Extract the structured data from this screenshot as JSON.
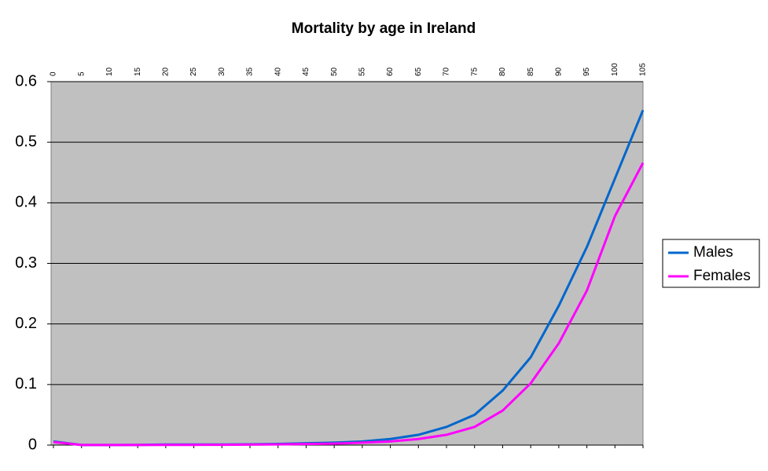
{
  "chart_data": {
    "type": "line",
    "title": "Mortality by age in Ireland",
    "x": [
      0,
      5,
      10,
      15,
      20,
      25,
      30,
      35,
      40,
      45,
      50,
      55,
      60,
      65,
      70,
      75,
      80,
      85,
      90,
      95,
      100,
      105
    ],
    "series": [
      {
        "name": "Males",
        "color": "#0066cc",
        "values": [
          0.006,
          0.0002,
          0.0002,
          0.0004,
          0.001,
          0.001,
          0.001,
          0.0013,
          0.002,
          0.003,
          0.004,
          0.006,
          0.01,
          0.017,
          0.03,
          0.05,
          0.09,
          0.145,
          0.23,
          0.327,
          0.44,
          0.553
        ]
      },
      {
        "name": "Females",
        "color": "#ff00ff",
        "values": [
          0.005,
          0.0002,
          0.0001,
          0.0002,
          0.0004,
          0.0004,
          0.0005,
          0.0008,
          0.0012,
          0.0018,
          0.0025,
          0.004,
          0.006,
          0.01,
          0.017,
          0.03,
          0.057,
          0.102,
          0.168,
          0.255,
          0.378,
          0.466
        ]
      }
    ],
    "xlim": [
      0,
      105
    ],
    "xticks": [
      0,
      5,
      10,
      15,
      20,
      25,
      30,
      35,
      40,
      45,
      50,
      55,
      60,
      65,
      70,
      75,
      80,
      85,
      90,
      95,
      100,
      105
    ],
    "ylim": [
      0,
      0.6
    ],
    "yticks": [
      0,
      0.1,
      0.2,
      0.3,
      0.4,
      0.5,
      0.6
    ],
    "grid": true,
    "legend": "right"
  }
}
